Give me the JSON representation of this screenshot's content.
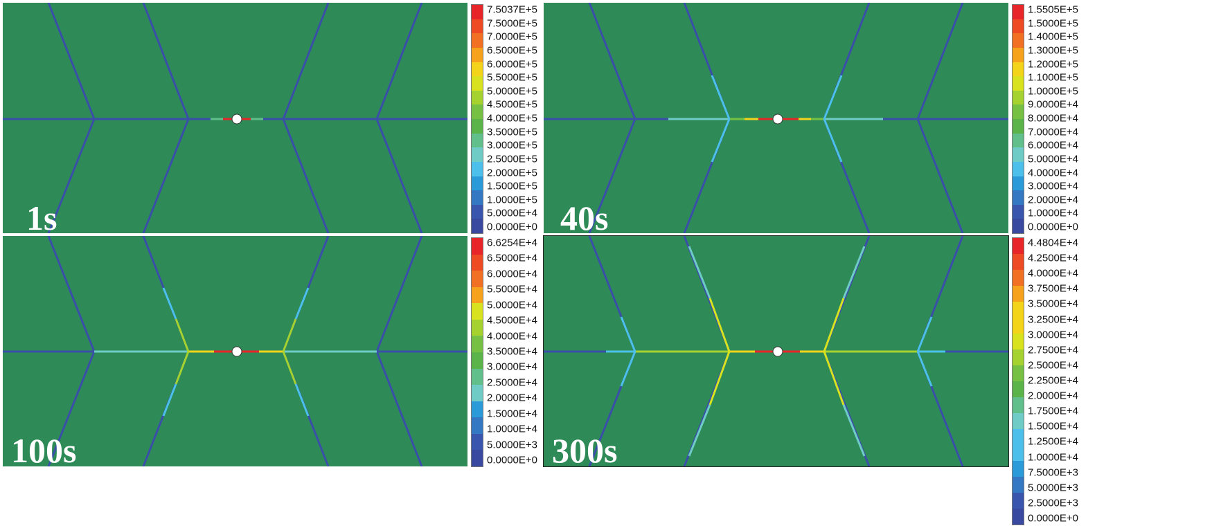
{
  "panels": [
    {
      "time": "1s",
      "colorbar": [
        "7.5037E+5",
        "7.5000E+5",
        "7.0000E+5",
        "6.5000E+5",
        "6.0000E+5",
        "5.5000E+5",
        "5.0000E+5",
        "4.5000E+5",
        "4.0000E+5",
        "3.5000E+5",
        "3.0000E+5",
        "2.5000E+5",
        "2.0000E+5",
        "1.5000E+5",
        "1.0000E+5",
        "5.0000E+4",
        "0.0000E+0"
      ]
    },
    {
      "time": "40s",
      "colorbar": [
        "1.5505E+5",
        "1.5000E+5",
        "1.4000E+5",
        "1.3000E+5",
        "1.2000E+5",
        "1.1000E+5",
        "1.0000E+5",
        "9.0000E+4",
        "8.0000E+4",
        "7.0000E+4",
        "6.0000E+4",
        "5.0000E+4",
        "4.0000E+4",
        "3.0000E+4",
        "2.0000E+4",
        "1.0000E+4",
        "0.0000E+0"
      ]
    },
    {
      "time": "100s",
      "colorbar": [
        "6.6254E+4",
        "6.5000E+4",
        "6.0000E+4",
        "5.5000E+4",
        "5.0000E+4",
        "4.5000E+4",
        "4.0000E+4",
        "3.5000E+4",
        "3.0000E+4",
        "2.5000E+4",
        "2.0000E+4",
        "1.5000E+4",
        "1.0000E+4",
        "5.0000E+3",
        "0.0000E+0"
      ]
    },
    {
      "time": "300s",
      "colorbar": [
        "4.4804E+4",
        "4.2500E+4",
        "4.0000E+4",
        "3.7500E+4",
        "3.5000E+4",
        "3.2500E+4",
        "3.0000E+4",
        "2.7500E+4",
        "2.5000E+4",
        "2.2500E+4",
        "2.0000E+4",
        "1.7500E+4",
        "1.5000E+4",
        "1.2500E+4",
        "1.0000E+4",
        "7.5000E+3",
        "5.0000E+3",
        "2.5000E+3",
        "0.0000E+0"
      ]
    }
  ],
  "colors": {
    "background": "#2e8b57",
    "fracture_low": "#3a4fa8",
    "borehole": "#ffffff",
    "scale": [
      "#e8262a",
      "#ee4a24",
      "#f27024",
      "#f7a21c",
      "#f4d41b",
      "#d9e21e",
      "#a6d22f",
      "#76c043",
      "#5bb449",
      "#60bf8a",
      "#6fcbc6",
      "#4cc0ea",
      "#2a9bd8",
      "#3477c2",
      "#3a55ad",
      "#3949a0"
    ]
  }
}
